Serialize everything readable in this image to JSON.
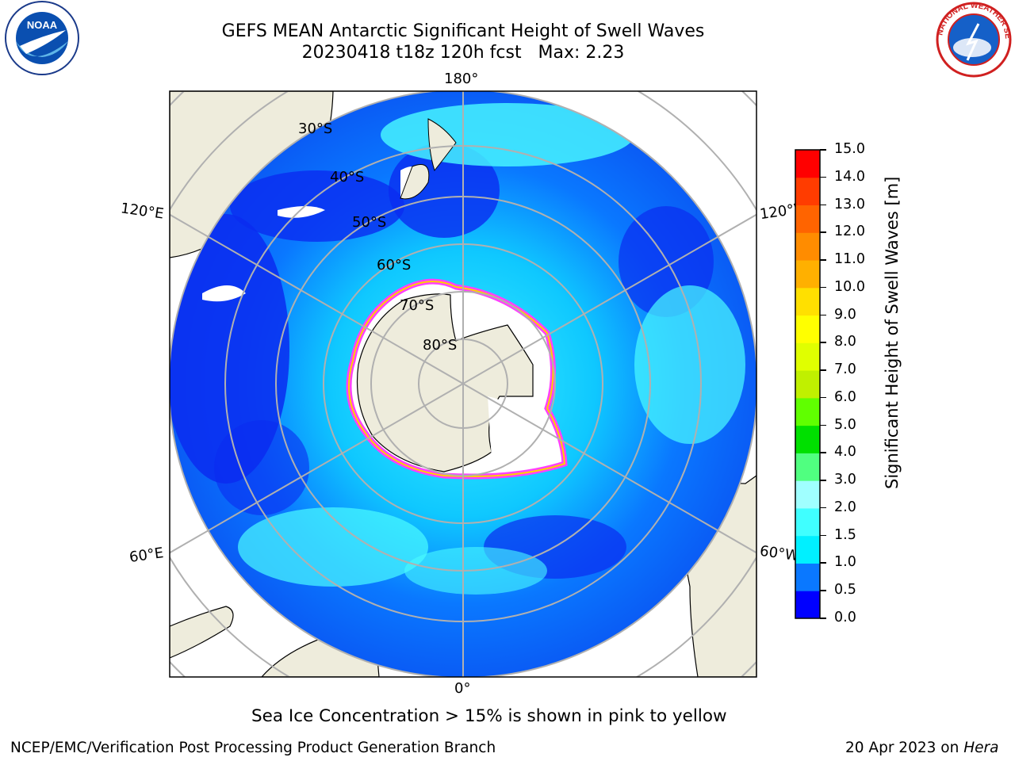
{
  "title": {
    "line1": "GEFS MEAN Antarctic Significant Height of Swell Waves",
    "line2": "20230418 t18z 120h fcst   Max: 2.23"
  },
  "map": {
    "projection": "south-polar-stereographic",
    "longitude_labels": {
      "top": "180°",
      "bottom": "0°",
      "upper_left": "120°E",
      "lower_left": "60°E",
      "upper_right": "120°W",
      "lower_right": "60°W"
    },
    "latitude_labels": [
      "30°S",
      "40°S",
      "50°S",
      "60°S",
      "70°S",
      "80°S"
    ],
    "colors": {
      "land": "#eeecdc",
      "antarctica_ice": "#ffffff",
      "graticule": "#b0b0b0",
      "sea_ice_edge": [
        "#ff40ff",
        "#ffd000"
      ]
    }
  },
  "colorbar": {
    "label": "Significant Height of Swell Waves [m]",
    "ticks": [
      "0.0",
      "0.5",
      "1.0",
      "1.5",
      "2.0",
      "3.0",
      "4.0",
      "5.0",
      "6.0",
      "7.0",
      "8.0",
      "9.0",
      "10.0",
      "11.0",
      "12.0",
      "13.0",
      "14.0",
      "15.0"
    ],
    "colors": [
      "#0000ff",
      "#0a78ff",
      "#00f0ff",
      "#40ffff",
      "#a0ffff",
      "#50ff80",
      "#00e000",
      "#60ff00",
      "#c0f000",
      "#e0ff00",
      "#ffff00",
      "#ffe000",
      "#ffb000",
      "#ff8c00",
      "#ff6400",
      "#ff3c00",
      "#ff0000"
    ]
  },
  "sea_ice_note": "Sea Ice Concentration > 15% is shown in pink to yellow",
  "footer": {
    "left": "NCEP/EMC/Verification Post Processing Product Generation Branch",
    "right_date": "20 Apr 2023 on ",
    "right_host": "Hera"
  },
  "logos": {
    "left_text": "NOAA",
    "right_text": "NATIONAL WEATHER SERVICE"
  }
}
